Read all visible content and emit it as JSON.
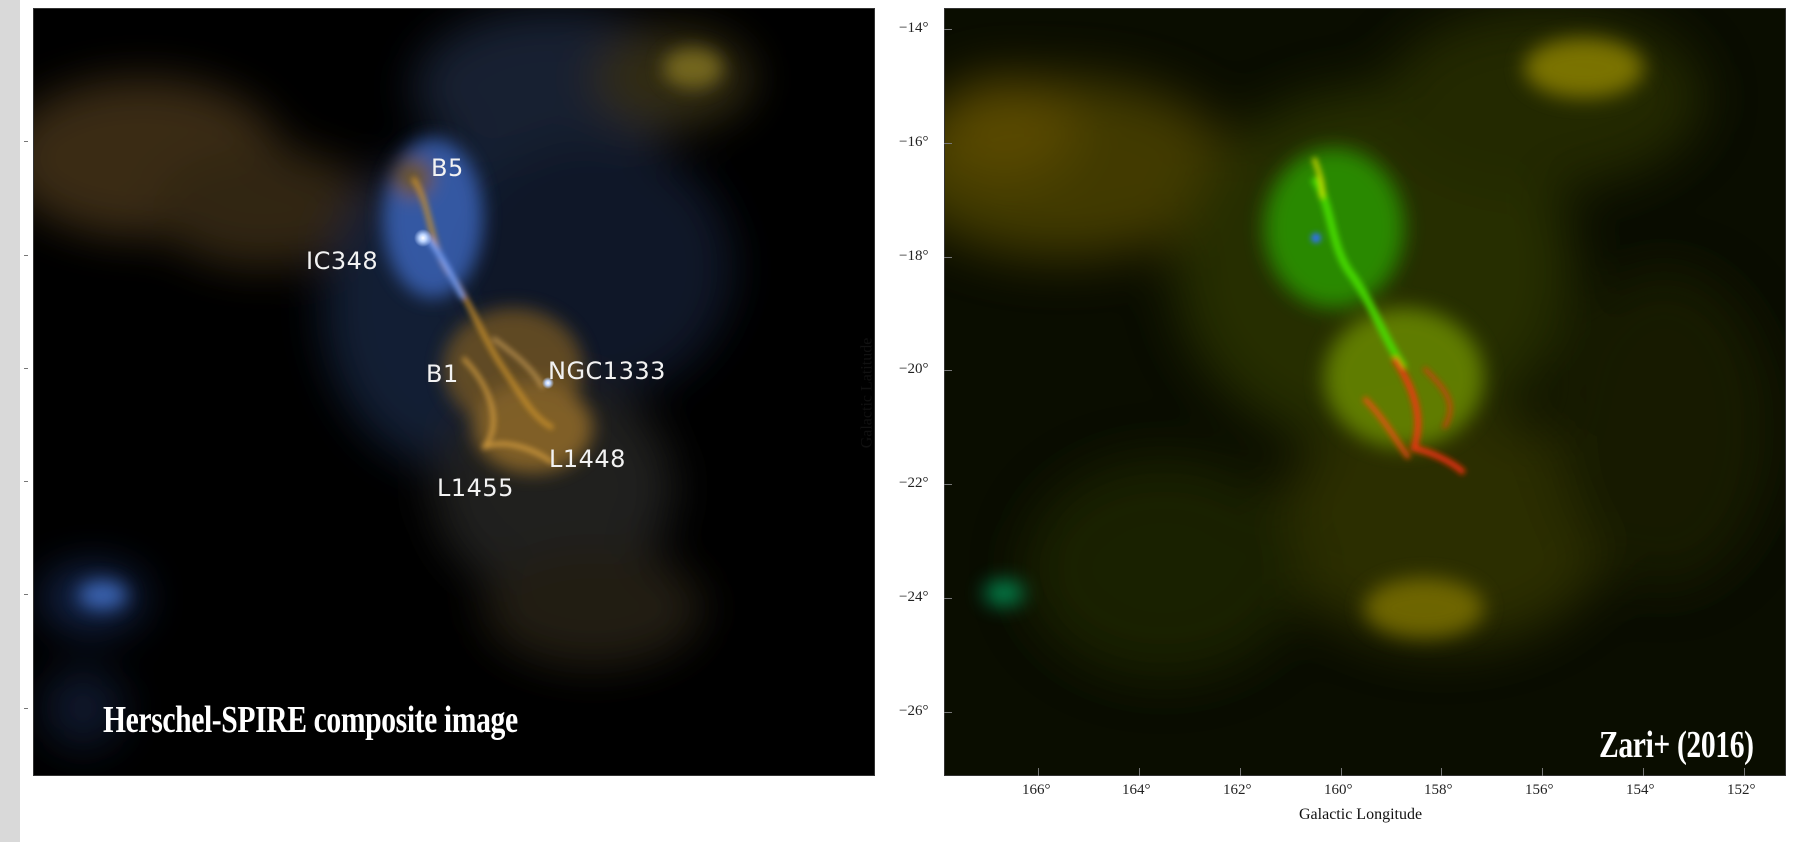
{
  "left_panel": {
    "caption": "Herschel-SPIRE composite image",
    "labels": {
      "b5": "B5",
      "ic348": "IC348",
      "b1": "B1",
      "ngc1333": "NGC1333",
      "l1448": "L1448",
      "l1455": "L1455"
    }
  },
  "right_panel": {
    "caption": "Zari+ (2016)",
    "y_axis": {
      "title": "Galactic Latitude",
      "ticks": [
        "−14°",
        "−16°",
        "−18°",
        "−20°",
        "−22°",
        "−24°",
        "−26°"
      ]
    },
    "x_axis": {
      "title": "Galactic Longitude",
      "ticks": [
        "166°",
        "164°",
        "162°",
        "160°",
        "158°",
        "156°",
        "154°",
        "152°"
      ]
    }
  },
  "colors": {
    "left_background": "#000000",
    "right_background": "#0a0d00",
    "left_emission_blue": "#4a78c8",
    "left_emission_orange": "#c8902a",
    "right_emission_yellow": "#b8b000",
    "right_emission_green": "#30d000",
    "right_emission_red": "#e83010"
  }
}
